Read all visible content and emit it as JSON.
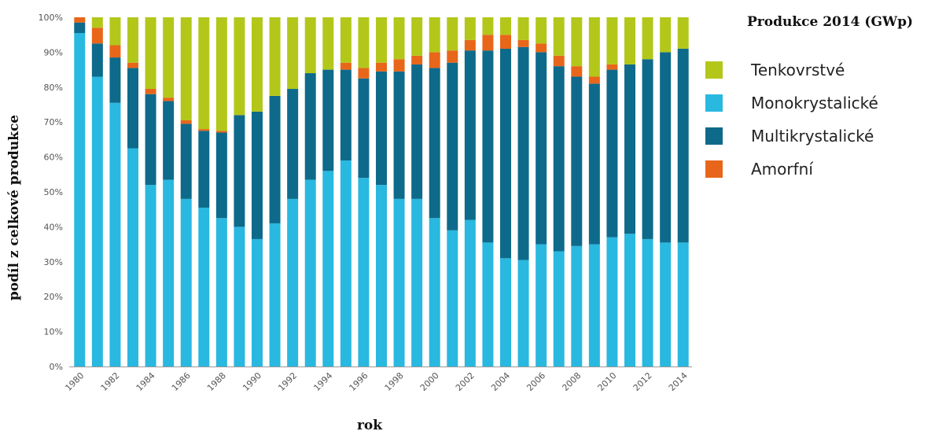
{
  "chart_data": {
    "type": "bar",
    "stacked": true,
    "ylabel": "podíl z celkové produkce",
    "xlabel": "rok",
    "legend_title": "Produkce 2014 (GWp)",
    "legend_position": "right",
    "grid": false,
    "ylim": [
      0,
      100
    ],
    "yticks": [
      "0%",
      "10%",
      "20%",
      "30%",
      "40%",
      "50%",
      "60%",
      "70%",
      "80%",
      "90%",
      "100%"
    ],
    "xtick_labels": [
      "1980",
      "1982",
      "1984",
      "1986",
      "1988",
      "1990",
      "1992",
      "1994",
      "1996",
      "1998",
      "2000",
      "2002",
      "2004",
      "2006",
      "2008",
      "2010",
      "2012",
      "2014"
    ],
    "categories": [
      "1980",
      "1981",
      "1982",
      "1983",
      "1984",
      "1985",
      "1986",
      "1987",
      "1988",
      "1989",
      "1990",
      "1991",
      "1992",
      "1993",
      "1994",
      "1995",
      "1996",
      "1997",
      "1998",
      "1999",
      "2000",
      "2001",
      "2002",
      "2003",
      "2004",
      "2005",
      "2006",
      "2007",
      "2008",
      "2009",
      "2010",
      "2011",
      "2012",
      "2013",
      "2014"
    ],
    "series": [
      {
        "name": "Monokrystalické",
        "color": "#29b8e0",
        "values": [
          95.5,
          83,
          75.5,
          62.5,
          52,
          53.5,
          48,
          45.5,
          42.5,
          40,
          36.5,
          41,
          48,
          53.5,
          56,
          59,
          54,
          52,
          48,
          48,
          42.5,
          39,
          42,
          35.5,
          31,
          30.5,
          35,
          33,
          34.5,
          35,
          37,
          38,
          36.5,
          35.5,
          35.5
        ]
      },
      {
        "name": "Multikrystalické",
        "color": "#0e6a8a",
        "values": [
          3,
          9.5,
          13,
          23,
          26,
          22.5,
          21.5,
          22,
          24.5,
          32,
          36.5,
          36.5,
          31.5,
          30.5,
          29,
          26,
          28.5,
          32.5,
          36.5,
          38.5,
          43,
          48,
          48.5,
          55,
          60,
          61,
          55,
          53,
          48.5,
          46,
          48,
          48.5,
          51.5,
          54.5,
          55.5
        ]
      },
      {
        "name": "Amorfní",
        "color": "#e8661a",
        "values": [
          1.5,
          4.5,
          3.5,
          1.5,
          1.5,
          1,
          1,
          0.5,
          0.5,
          0,
          0,
          0,
          0,
          0,
          0,
          2,
          3,
          2.5,
          3.5,
          2.5,
          4.5,
          3.5,
          3,
          4.5,
          4,
          2,
          2.5,
          3,
          3,
          2,
          1.5,
          0,
          0,
          0,
          0
        ]
      },
      {
        "name": "Tenkovrstvé",
        "color": "#b3c71a",
        "values": [
          0,
          3,
          8,
          13,
          20.5,
          23,
          29.5,
          32,
          32.5,
          28,
          27,
          22.5,
          20.5,
          16,
          15,
          13,
          14.5,
          13,
          12,
          11,
          10,
          9.5,
          6.5,
          5,
          5,
          6.5,
          7.5,
          11,
          14,
          17,
          13.5,
          13.5,
          12,
          10,
          9
        ]
      }
    ],
    "legend_order": [
      "Tenkovrstvé",
      "Monokrystalické",
      "Multikrystalické",
      "Amorfní"
    ]
  }
}
